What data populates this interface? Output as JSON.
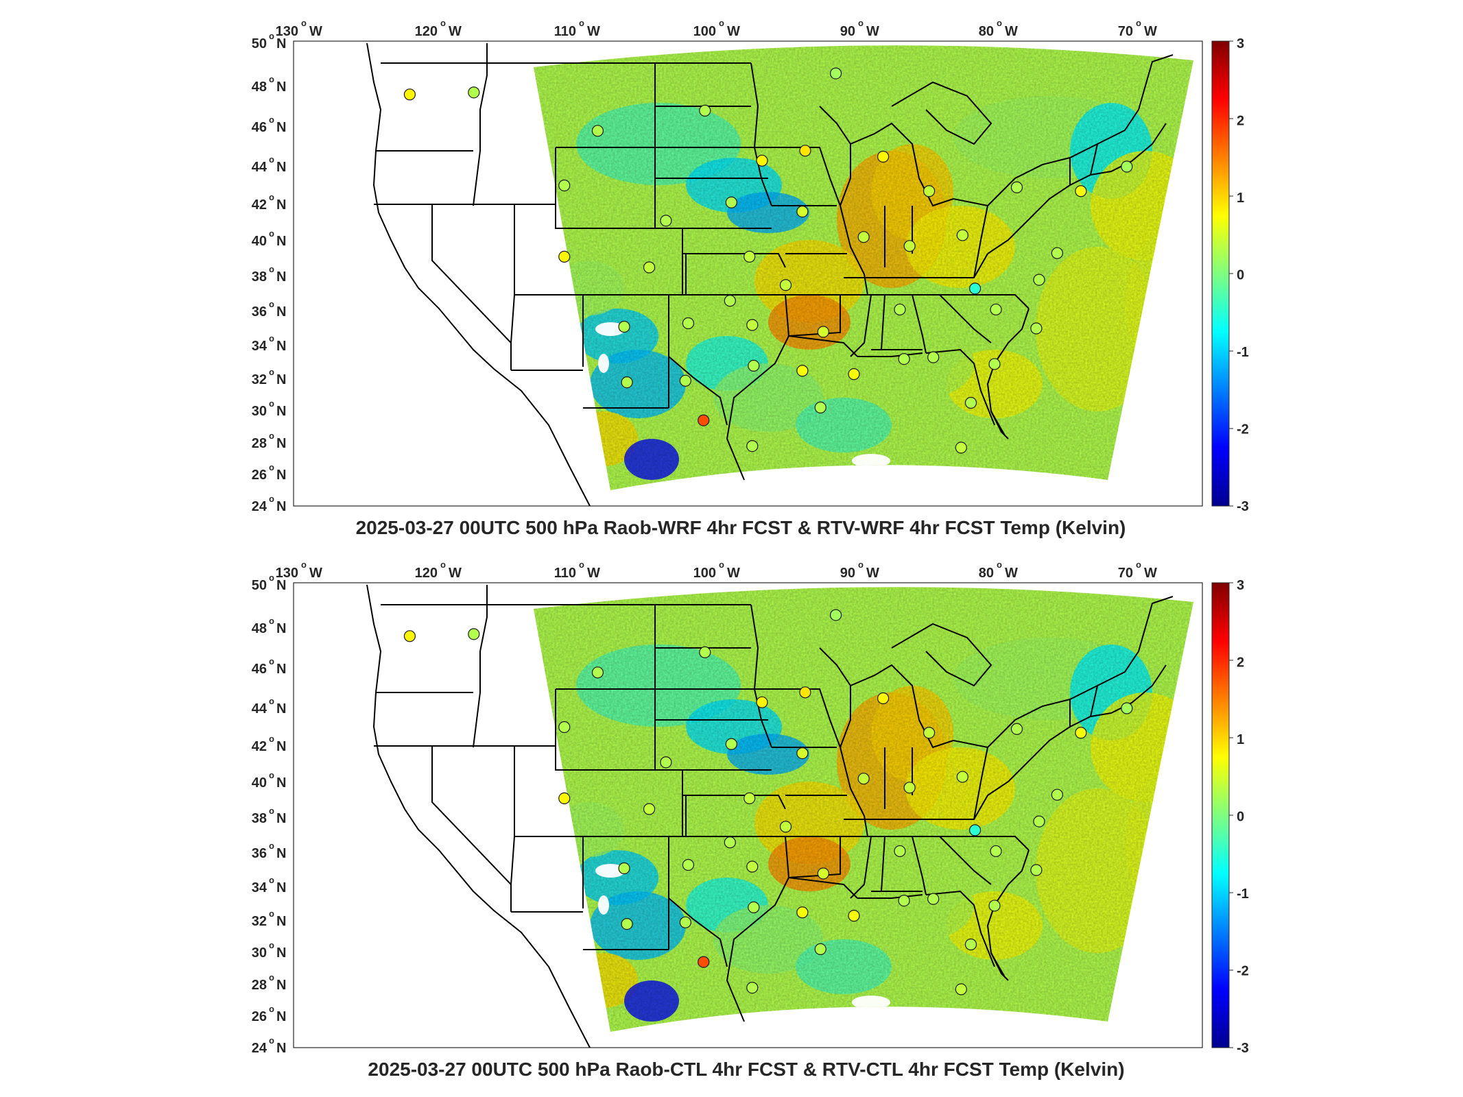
{
  "panels": [
    {
      "title": "2025-03-27 00UTC 500 hPa Raob-WRF 4hr FCST & RTV-WRF 4hr FCST Temp (Kelvin)"
    },
    {
      "title": "2025-03-27 00UTC 500 hPa Raob-CTL 4hr FCST & RTV-CTL 4hr FCST Temp (Kelvin)"
    }
  ],
  "lon_ticks": [
    {
      "num": "130",
      "dir": "W"
    },
    {
      "num": "120",
      "dir": "W"
    },
    {
      "num": "110",
      "dir": "W"
    },
    {
      "num": "100",
      "dir": "W"
    },
    {
      "num": "90",
      "dir": "W"
    },
    {
      "num": "80",
      "dir": "W"
    },
    {
      "num": "70",
      "dir": "W"
    }
  ],
  "lat_ticks": [
    {
      "num": "50",
      "dir": "N"
    },
    {
      "num": "48",
      "dir": "N"
    },
    {
      "num": "46",
      "dir": "N"
    },
    {
      "num": "44",
      "dir": "N"
    },
    {
      "num": "42",
      "dir": "N"
    },
    {
      "num": "40",
      "dir": "N"
    },
    {
      "num": "38",
      "dir": "N"
    },
    {
      "num": "36",
      "dir": "N"
    },
    {
      "num": "34",
      "dir": "N"
    },
    {
      "num": "32",
      "dir": "N"
    },
    {
      "num": "30",
      "dir": "N"
    },
    {
      "num": "28",
      "dir": "N"
    },
    {
      "num": "26",
      "dir": "N"
    },
    {
      "num": "24",
      "dir": "N"
    }
  ],
  "colorbar": {
    "colormap": "jet",
    "range": [
      -3,
      3
    ],
    "tick_labels": [
      "3",
      "2",
      "1",
      "0",
      "-1",
      "-2",
      "-3"
    ]
  },
  "map_style": {
    "ocean_land_background": "#ffffff",
    "state_lines": "#000000",
    "missing_data": "#ffffff"
  },
  "raob_stations": [
    {
      "lon": -122.0,
      "lat": 47.6,
      "value": 0.8
    },
    {
      "lon": -117.4,
      "lat": 47.7,
      "value": 0.3
    },
    {
      "lon": -108.5,
      "lat": 45.8,
      "value": 0.3
    },
    {
      "lon": -100.8,
      "lat": 46.8,
      "value": 0.3
    },
    {
      "lon": -96.7,
      "lat": 44.3,
      "value": 0.8
    },
    {
      "lon": -93.6,
      "lat": 44.8,
      "value": 0.9
    },
    {
      "lon": -91.4,
      "lat": 48.6,
      "value": 0.2
    },
    {
      "lon": -88.0,
      "lat": 44.5,
      "value": 0.8
    },
    {
      "lon": -84.7,
      "lat": 42.7,
      "value": 0.4
    },
    {
      "lon": -110.9,
      "lat": 43.0,
      "value": 0.3
    },
    {
      "lon": -103.6,
      "lat": 41.1,
      "value": 0.3
    },
    {
      "lon": -98.9,
      "lat": 42.1,
      "value": 0.3
    },
    {
      "lon": -93.8,
      "lat": 41.6,
      "value": 0.5
    },
    {
      "lon": -89.4,
      "lat": 40.2,
      "value": 0.4
    },
    {
      "lon": -86.1,
      "lat": 39.7,
      "value": 0.4
    },
    {
      "lon": -82.3,
      "lat": 40.3,
      "value": 0.4
    },
    {
      "lon": -78.4,
      "lat": 42.9,
      "value": 0.3
    },
    {
      "lon": -73.8,
      "lat": 42.7,
      "value": 0.7
    },
    {
      "lon": -70.5,
      "lat": 44.0,
      "value": 0.2
    },
    {
      "lon": -110.9,
      "lat": 39.1,
      "value": 0.8
    },
    {
      "lon": -104.8,
      "lat": 38.5,
      "value": 0.4
    },
    {
      "lon": -97.6,
      "lat": 39.1,
      "value": 0.4
    },
    {
      "lon": -95.0,
      "lat": 37.5,
      "value": 0.4
    },
    {
      "lon": -99.0,
      "lat": 36.6,
      "value": 0.3
    },
    {
      "lon": -102.0,
      "lat": 35.3,
      "value": 0.3
    },
    {
      "lon": -106.6,
      "lat": 35.1,
      "value": 0.3
    },
    {
      "lon": -97.4,
      "lat": 35.2,
      "value": 0.4
    },
    {
      "lon": -92.3,
      "lat": 34.8,
      "value": 0.5
    },
    {
      "lon": -86.8,
      "lat": 36.1,
      "value": 0.3
    },
    {
      "lon": -81.4,
      "lat": 37.3,
      "value": -0.5
    },
    {
      "lon": -79.9,
      "lat": 36.1,
      "value": 0.3
    },
    {
      "lon": -77.0,
      "lat": 35.0,
      "value": 0.3
    },
    {
      "lon": -76.8,
      "lat": 37.8,
      "value": 0.3
    },
    {
      "lon": -75.5,
      "lat": 39.3,
      "value": 0.3
    },
    {
      "lon": -106.4,
      "lat": 31.8,
      "value": 0.3
    },
    {
      "lon": -102.2,
      "lat": 31.9,
      "value": 0.3
    },
    {
      "lon": -97.3,
      "lat": 32.8,
      "value": 0.3
    },
    {
      "lon": -93.8,
      "lat": 32.5,
      "value": 0.7
    },
    {
      "lon": -90.1,
      "lat": 32.3,
      "value": 0.7
    },
    {
      "lon": -86.5,
      "lat": 33.2,
      "value": 0.3
    },
    {
      "lon": -84.4,
      "lat": 33.3,
      "value": 0.3
    },
    {
      "lon": -80.0,
      "lat": 32.9,
      "value": 0.3
    },
    {
      "lon": -100.9,
      "lat": 29.4,
      "value": 1.8
    },
    {
      "lon": -97.4,
      "lat": 27.8,
      "value": 0.3
    },
    {
      "lon": -92.5,
      "lat": 30.2,
      "value": 0.3
    },
    {
      "lon": -81.7,
      "lat": 30.5,
      "value": 0.3
    },
    {
      "lon": -82.4,
      "lat": 27.7,
      "value": 0.4
    }
  ]
}
